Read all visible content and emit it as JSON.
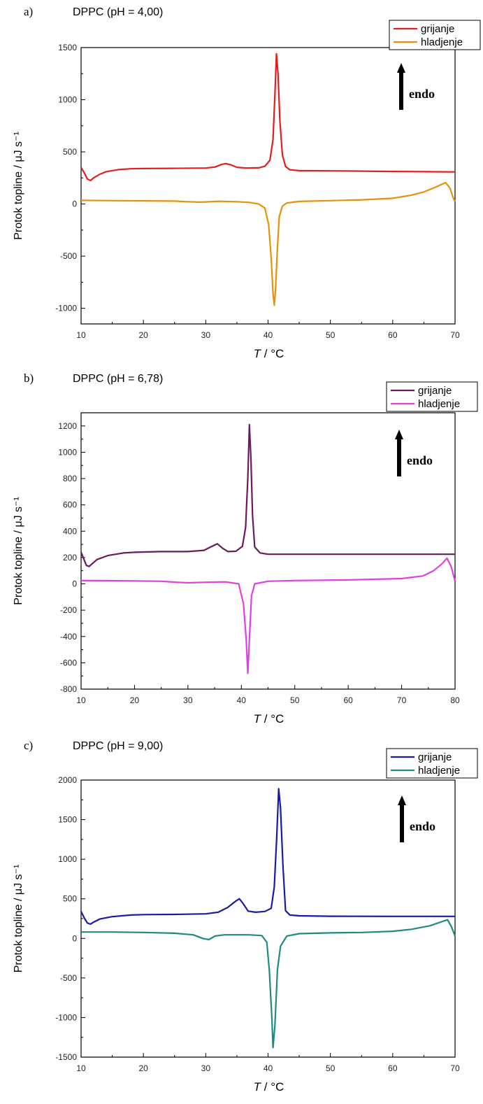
{
  "chart_data": [
    {
      "type": "line",
      "panel_label": "a)",
      "title": "DPPC (pH = 4,00)",
      "xlabel": "T / °C",
      "ylabel": "Protok topline / μJ s⁻¹",
      "xlim": [
        10,
        70
      ],
      "ylim": [
        -1150,
        1500
      ],
      "xticks": [
        10,
        20,
        30,
        40,
        50,
        60,
        70
      ],
      "yticks": [
        -1000,
        -500,
        0,
        500,
        1000,
        1500
      ],
      "legend_position": "top-right",
      "annotation": "endo",
      "series": [
        {
          "name": "grijanje",
          "color": "#e02020",
          "points": [
            [
              10,
              350
            ],
            [
              10.5,
              300
            ],
            [
              11,
              240
            ],
            [
              11.5,
              225
            ],
            [
              12,
              250
            ],
            [
              13,
              285
            ],
            [
              14,
              310
            ],
            [
              16,
              330
            ],
            [
              18,
              338
            ],
            [
              20,
              340
            ],
            [
              25,
              342
            ],
            [
              30,
              345
            ],
            [
              31.5,
              355
            ],
            [
              32.5,
              378
            ],
            [
              33.2,
              388
            ],
            [
              34,
              376
            ],
            [
              35,
              352
            ],
            [
              36.5,
              345
            ],
            [
              38.5,
              347
            ],
            [
              39.5,
              362
            ],
            [
              40.3,
              420
            ],
            [
              40.8,
              620
            ],
            [
              41.1,
              1050
            ],
            [
              41.35,
              1440
            ],
            [
              41.6,
              1240
            ],
            [
              41.9,
              800
            ],
            [
              42.3,
              470
            ],
            [
              42.8,
              360
            ],
            [
              43.5,
              328
            ],
            [
              45,
              320
            ],
            [
              50,
              318
            ],
            [
              55,
              315
            ],
            [
              60,
              312
            ],
            [
              65,
              310
            ],
            [
              70,
              308
            ]
          ]
        },
        {
          "name": "hladjenje",
          "color": "#e8900a",
          "points": [
            [
              10,
              35
            ],
            [
              15,
              32
            ],
            [
              20,
              30
            ],
            [
              25,
              28
            ],
            [
              27,
              22
            ],
            [
              29,
              18
            ],
            [
              30,
              20
            ],
            [
              32,
              26
            ],
            [
              35,
              22
            ],
            [
              37,
              15
            ],
            [
              38.5,
              0
            ],
            [
              39.5,
              -40
            ],
            [
              40.1,
              -200
            ],
            [
              40.5,
              -520
            ],
            [
              40.8,
              -860
            ],
            [
              41.0,
              -970
            ],
            [
              41.2,
              -820
            ],
            [
              41.5,
              -420
            ],
            [
              41.8,
              -120
            ],
            [
              42.3,
              -20
            ],
            [
              43,
              10
            ],
            [
              45,
              25
            ],
            [
              50,
              32
            ],
            [
              55,
              40
            ],
            [
              60,
              55
            ],
            [
              63,
              85
            ],
            [
              65,
              115
            ],
            [
              67,
              165
            ],
            [
              68.5,
              205
            ],
            [
              69.2,
              150
            ],
            [
              69.7,
              60
            ],
            [
              70,
              25
            ]
          ]
        }
      ]
    },
    {
      "type": "line",
      "panel_label": "b)",
      "title": "DPPC (pH = 6,78)",
      "xlabel": "T / °C",
      "ylabel": "Protok topline / μJ s⁻¹",
      "xlim": [
        10,
        80
      ],
      "ylim": [
        -800,
        1300
      ],
      "xticks": [
        10,
        20,
        30,
        40,
        50,
        60,
        70,
        80
      ],
      "yticks": [
        -800,
        -600,
        -400,
        -200,
        0,
        200,
        400,
        600,
        800,
        1000,
        1200
      ],
      "legend_position": "top-right",
      "annotation": "endo",
      "series": [
        {
          "name": "grijanje",
          "color": "#6a1b5e",
          "points": [
            [
              10,
              240
            ],
            [
              10.5,
              190
            ],
            [
              11,
              140
            ],
            [
              11.5,
              132
            ],
            [
              12,
              150
            ],
            [
              13,
              185
            ],
            [
              15,
              215
            ],
            [
              18,
              235
            ],
            [
              20,
              240
            ],
            [
              25,
              245
            ],
            [
              30,
              245
            ],
            [
              33,
              255
            ],
            [
              34.5,
              285
            ],
            [
              35.5,
              305
            ],
            [
              36.5,
              270
            ],
            [
              37.5,
              245
            ],
            [
              39,
              248
            ],
            [
              40.2,
              285
            ],
            [
              40.8,
              430
            ],
            [
              41.2,
              800
            ],
            [
              41.5,
              1210
            ],
            [
              41.8,
              950
            ],
            [
              42.1,
              520
            ],
            [
              42.5,
              280
            ],
            [
              43.5,
              235
            ],
            [
              45,
              225
            ],
            [
              50,
              225
            ],
            [
              60,
              225
            ],
            [
              70,
              225
            ],
            [
              80,
              225
            ]
          ]
        },
        {
          "name": "hladjenje",
          "color": "#e040e0",
          "points": [
            [
              10,
              25
            ],
            [
              15,
              24
            ],
            [
              20,
              22
            ],
            [
              25,
              20
            ],
            [
              28,
              12
            ],
            [
              30,
              8
            ],
            [
              33,
              12
            ],
            [
              37,
              15
            ],
            [
              39.5,
              0
            ],
            [
              40.4,
              -150
            ],
            [
              40.9,
              -420
            ],
            [
              41.2,
              -680
            ],
            [
              41.5,
              -420
            ],
            [
              41.9,
              -90
            ],
            [
              42.5,
              0
            ],
            [
              45,
              20
            ],
            [
              50,
              25
            ],
            [
              60,
              30
            ],
            [
              70,
              40
            ],
            [
              74,
              60
            ],
            [
              76,
              100
            ],
            [
              77.5,
              150
            ],
            [
              78.5,
              195
            ],
            [
              79.3,
              130
            ],
            [
              79.8,
              50
            ],
            [
              80,
              20
            ]
          ]
        }
      ]
    },
    {
      "type": "line",
      "panel_label": "c)",
      "title": "DPPC (pH = 9,00)",
      "xlabel": "T / °C",
      "ylabel": "Protok topline / μJ s⁻¹",
      "xlim": [
        10,
        70
      ],
      "ylim": [
        -1500,
        2000
      ],
      "xticks": [
        10,
        20,
        30,
        40,
        50,
        60,
        70
      ],
      "yticks": [
        -1500,
        -1000,
        -500,
        0,
        500,
        1000,
        1500,
        2000
      ],
      "legend_position": "top-right",
      "annotation": "endo",
      "series": [
        {
          "name": "grijanje",
          "color": "#1a1aa8",
          "points": [
            [
              10,
              340
            ],
            [
              10.5,
              260
            ],
            [
              11,
              195
            ],
            [
              11.5,
              180
            ],
            [
              12,
              205
            ],
            [
              13,
              245
            ],
            [
              15,
              275
            ],
            [
              18,
              295
            ],
            [
              20,
              300
            ],
            [
              25,
              303
            ],
            [
              30,
              310
            ],
            [
              32,
              330
            ],
            [
              33.5,
              390
            ],
            [
              34.8,
              470
            ],
            [
              35.4,
              500
            ],
            [
              36,
              440
            ],
            [
              36.8,
              345
            ],
            [
              38,
              330
            ],
            [
              39.5,
              340
            ],
            [
              40.5,
              380
            ],
            [
              41,
              650
            ],
            [
              41.4,
              1300
            ],
            [
              41.7,
              1890
            ],
            [
              42,
              1650
            ],
            [
              42.4,
              900
            ],
            [
              42.8,
              350
            ],
            [
              43.5,
              295
            ],
            [
              45,
              285
            ],
            [
              50,
              280
            ],
            [
              60,
              278
            ],
            [
              70,
              278
            ]
          ]
        },
        {
          "name": "hladjenje",
          "color": "#1f8a80",
          "points": [
            [
              10,
              80
            ],
            [
              15,
              80
            ],
            [
              20,
              75
            ],
            [
              25,
              65
            ],
            [
              28,
              45
            ],
            [
              29.5,
              0
            ],
            [
              30.5,
              -15
            ],
            [
              31.5,
              30
            ],
            [
              33,
              45
            ],
            [
              37,
              45
            ],
            [
              39,
              35
            ],
            [
              39.8,
              -50
            ],
            [
              40.2,
              -400
            ],
            [
              40.6,
              -1000
            ],
            [
              40.8,
              -1380
            ],
            [
              41.1,
              -1100
            ],
            [
              41.5,
              -400
            ],
            [
              42,
              -100
            ],
            [
              43,
              30
            ],
            [
              45,
              60
            ],
            [
              50,
              70
            ],
            [
              55,
              75
            ],
            [
              60,
              90
            ],
            [
              63,
              115
            ],
            [
              66,
              160
            ],
            [
              68,
              215
            ],
            [
              68.8,
              235
            ],
            [
              69.4,
              150
            ],
            [
              70,
              30
            ]
          ]
        }
      ]
    }
  ]
}
